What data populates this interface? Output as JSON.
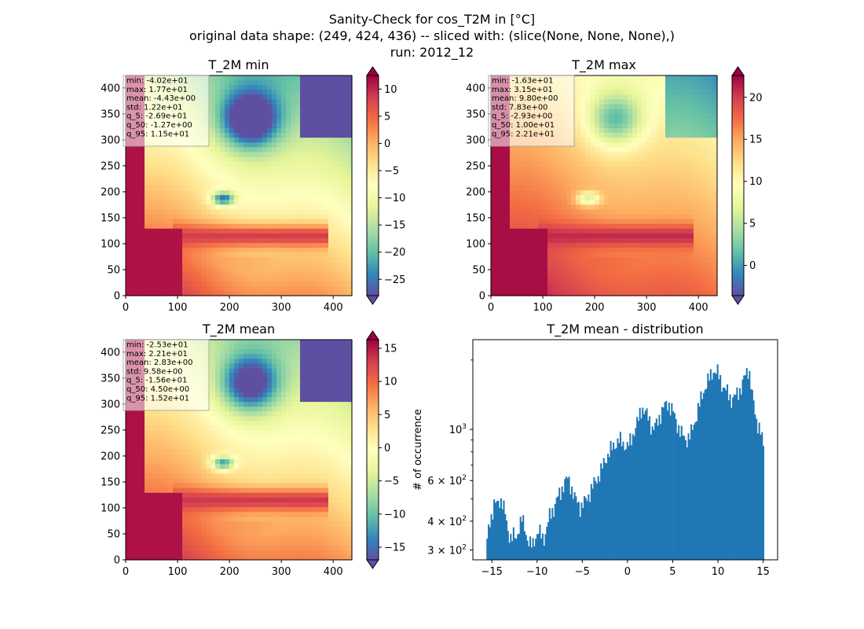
{
  "suptitle": [
    "Sanity-Check for cos_T2M in [°C]",
    "original data shape: (249, 424, 436) -- sliced with: (slice(None, None, None),)",
    "run: 2012_12"
  ],
  "colormap": [
    "#5e4fa2",
    "#3288bd",
    "#66c2a5",
    "#abdda4",
    "#e6f598",
    "#ffffbf",
    "#fee08b",
    "#fdae61",
    "#f46d43",
    "#d53e4f",
    "#9e0142"
  ],
  "bar_color": "#1f77b4",
  "chart_data": [
    {
      "type": "heatmap",
      "title": "T_2M min",
      "x_ticks": [
        "0",
        "100",
        "200",
        "300",
        "400"
      ],
      "y_ticks": [
        "0",
        "50",
        "100",
        "150",
        "200",
        "250",
        "300",
        "350",
        "400"
      ],
      "xlim": [
        0,
        436
      ],
      "ylim": [
        0,
        424
      ],
      "stats": [
        "min: -4.02e+01",
        "max: 1.77e+01",
        "mean: -4.43e+00",
        "std: 1.22e+01",
        "q_5: -2.69e+01",
        "q_50: -1.27e+00",
        "q_95: 1.15e+01"
      ],
      "colorbar": {
        "vmin": -28.0,
        "vmax": 12.5,
        "ticks": [
          10,
          5,
          0,
          -5,
          -10,
          -15,
          -20,
          -25
        ],
        "tick_labels": [
          "10",
          "5",
          "0",
          "−5",
          "−10",
          "−15",
          "−20",
          "−25"
        ]
      }
    },
    {
      "type": "heatmap",
      "title": "T_2M max",
      "x_ticks": [
        "0",
        "100",
        "200",
        "300",
        "400"
      ],
      "y_ticks": [
        "0",
        "50",
        "100",
        "150",
        "200",
        "250",
        "300",
        "350",
        "400"
      ],
      "xlim": [
        0,
        436
      ],
      "ylim": [
        0,
        424
      ],
      "stats": [
        "min: -1.63e+01",
        "max: 3.15e+01",
        "mean: 9.80e+00",
        "std: 7.83e+00",
        "q_5: -2.93e+00",
        "q_50: 1.00e+01",
        "q_95: 2.21e+01"
      ],
      "colorbar": {
        "vmin": -3.6,
        "vmax": 22.6,
        "ticks": [
          20,
          15,
          10,
          5,
          0
        ],
        "tick_labels": [
          "20",
          "15",
          "10",
          "5",
          "0"
        ]
      }
    },
    {
      "type": "heatmap",
      "title": "T_2M mean",
      "x_ticks": [
        "0",
        "100",
        "200",
        "300",
        "400"
      ],
      "y_ticks": [
        "0",
        "50",
        "100",
        "150",
        "200",
        "250",
        "300",
        "350",
        "400"
      ],
      "xlim": [
        0,
        436
      ],
      "ylim": [
        0,
        424
      ],
      "stats": [
        "min: -2.53e+01",
        "max: 2.21e+01",
        "mean: 2.83e+00",
        "std: 9.58e+00",
        "q_5: -1.56e+01",
        "q_50: 4.50e+00",
        "q_95: 1.52e+01"
      ],
      "colorbar": {
        "vmin": -16.9,
        "vmax": 16.3,
        "ticks": [
          15,
          10,
          5,
          0,
          -5,
          -10,
          -15
        ],
        "tick_labels": [
          "15",
          "10",
          "5",
          "0",
          "−5",
          "−10",
          "−15"
        ]
      }
    },
    {
      "type": "bar",
      "title": "T_2M mean - distribution",
      "ylabel": "# of occurrence",
      "xlim": [
        -17.1,
        16.6
      ],
      "ylim": [
        272,
        2450
      ],
      "y_scale": "log",
      "x_ticks": [
        -15,
        -10,
        -5,
        0,
        5,
        10,
        15
      ],
      "x_tick_labels": [
        "−15",
        "−10",
        "−5",
        "0",
        "5",
        "10",
        "15"
      ],
      "y_ticks": [
        {
          "value": 300,
          "base": "3 × 10",
          "exp": "2"
        },
        {
          "value": 400,
          "base": "4 × 10",
          "exp": "2"
        },
        {
          "value": 600,
          "base": "6 × 10",
          "exp": "2"
        },
        {
          "value": 1000,
          "base": "10",
          "exp": "3"
        }
      ],
      "profile": [
        [
          -15.6,
          300
        ],
        [
          -15.3,
          390
        ],
        [
          -15.0,
          430
        ],
        [
          -14.7,
          480
        ],
        [
          -14.4,
          470
        ],
        [
          -14.1,
          500
        ],
        [
          -13.8,
          480
        ],
        [
          -13.5,
          420
        ],
        [
          -13.2,
          360
        ],
        [
          -12.9,
          340
        ],
        [
          -12.6,
          345
        ],
        [
          -12.3,
          335
        ],
        [
          -12.0,
          380
        ],
        [
          -11.7,
          410
        ],
        [
          -11.4,
          375
        ],
        [
          -11.1,
          340
        ],
        [
          -10.8,
          320
        ],
        [
          -10.5,
          310
        ],
        [
          -10.2,
          340
        ],
        [
          -9.9,
          365
        ],
        [
          -9.6,
          350
        ],
        [
          -9.3,
          330
        ],
        [
          -8.9,
          380
        ],
        [
          -8.6,
          420
        ],
        [
          -8.2,
          450
        ],
        [
          -7.8,
          500
        ],
        [
          -7.4,
          530
        ],
        [
          -7.0,
          590
        ],
        [
          -6.6,
          610
        ],
        [
          -6.2,
          560
        ],
        [
          -5.8,
          500
        ],
        [
          -5.5,
          480
        ],
        [
          -5.2,
          460
        ],
        [
          -4.8,
          480
        ],
        [
          -4.5,
          500
        ],
        [
          -4.0,
          550
        ],
        [
          -3.5,
          600
        ],
        [
          -3.0,
          650
        ],
        [
          -2.5,
          730
        ],
        [
          -2.0,
          800
        ],
        [
          -1.5,
          850
        ],
        [
          -1.0,
          900
        ],
        [
          -0.5,
          870
        ],
        [
          0.0,
          840
        ],
        [
          0.4,
          900
        ],
        [
          0.8,
          1000
        ],
        [
          1.2,
          1100
        ],
        [
          1.6,
          1250
        ],
        [
          2.0,
          1180
        ],
        [
          2.4,
          1100
        ],
        [
          2.8,
          1000
        ],
        [
          3.2,
          1050
        ],
        [
          3.6,
          1150
        ],
        [
          4.0,
          1250
        ],
        [
          4.5,
          1300
        ],
        [
          5.0,
          1200
        ],
        [
          5.5,
          1050
        ],
        [
          6.0,
          950
        ],
        [
          6.5,
          900
        ],
        [
          7.0,
          950
        ],
        [
          7.5,
          1100
        ],
        [
          8.0,
          1300
        ],
        [
          8.5,
          1500
        ],
        [
          9.0,
          1650
        ],
        [
          9.5,
          1800
        ],
        [
          10.0,
          1750
        ],
        [
          10.5,
          1550
        ],
        [
          11.0,
          1450
        ],
        [
          11.5,
          1350
        ],
        [
          12.0,
          1400
        ],
        [
          12.5,
          1500
        ],
        [
          13.0,
          1700
        ],
        [
          13.4,
          1850
        ],
        [
          13.8,
          1400
        ],
        [
          14.2,
          1100
        ],
        [
          14.5,
          1050
        ],
        [
          14.8,
          950
        ],
        [
          15.0,
          830
        ]
      ],
      "bin_count": 200,
      "bin_range": [
        -15.6,
        15.1
      ]
    }
  ]
}
